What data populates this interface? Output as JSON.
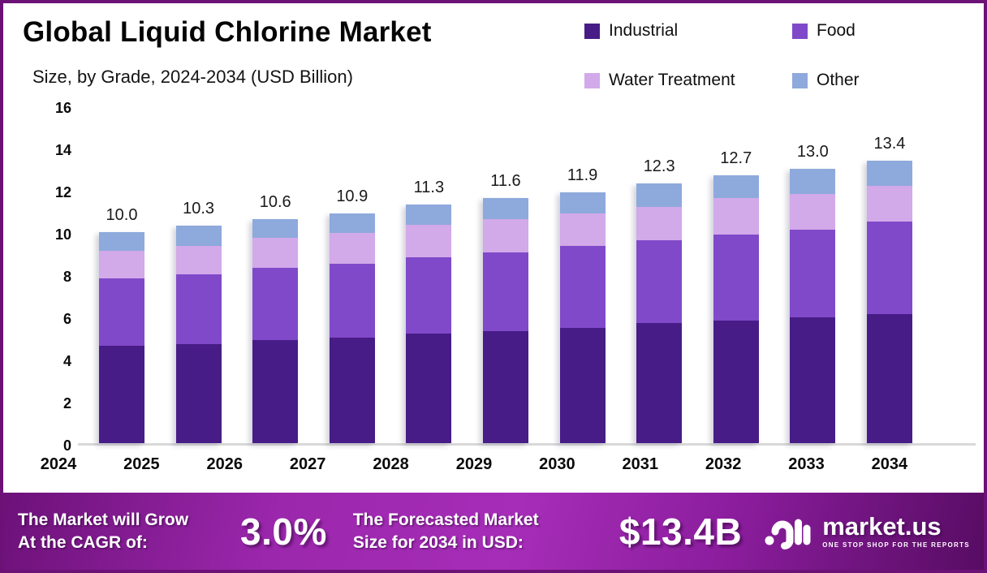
{
  "header": {
    "title": "Global Liquid Chlorine Market",
    "subtitle": "Size, by Grade, 2024-2034 (USD Billion)"
  },
  "chart_data": {
    "type": "bar",
    "stacked": true,
    "title": "Global Liquid Chlorine Market Size, by Grade, 2024-2034 (USD Billion)",
    "categories": [
      "2024",
      "2025",
      "2026",
      "2027",
      "2028",
      "2029",
      "2030",
      "2031",
      "2032",
      "2033",
      "2034"
    ],
    "series": [
      {
        "name": "Industrial",
        "color": "#471C87",
        "values": [
          4.6,
          4.7,
          4.9,
          5.0,
          5.2,
          5.3,
          5.45,
          5.7,
          5.8,
          5.95,
          6.1
        ]
      },
      {
        "name": "Food",
        "color": "#8049C9",
        "values": [
          3.2,
          3.3,
          3.4,
          3.5,
          3.6,
          3.75,
          3.9,
          3.9,
          4.1,
          4.15,
          4.4
        ]
      },
      {
        "name": "Water Treatment",
        "color": "#D2A9E9",
        "values": [
          1.3,
          1.35,
          1.45,
          1.45,
          1.55,
          1.55,
          1.55,
          1.6,
          1.7,
          1.7,
          1.7
        ]
      },
      {
        "name": "Other",
        "color": "#8EA9DC",
        "values": [
          0.9,
          0.95,
          0.85,
          0.95,
          0.95,
          1.0,
          1.0,
          1.1,
          1.1,
          1.2,
          1.2
        ]
      }
    ],
    "totals": [
      10.0,
      10.3,
      10.6,
      10.9,
      11.3,
      11.6,
      11.9,
      12.3,
      12.7,
      13.0,
      13.4
    ],
    "total_labels": [
      "10.0",
      "10.3",
      "10.6",
      "10.9",
      "11.3",
      "11.6",
      "11.9",
      "12.3",
      "12.7",
      "13.0",
      "13.4"
    ],
    "ylim": [
      0,
      16
    ],
    "yticks": [
      0,
      2,
      4,
      6,
      8,
      10,
      12,
      14,
      16
    ],
    "grid": false,
    "legend_position": "top-right",
    "axis_line_color": "#D9D9D9"
  },
  "banner": {
    "cagr_label_line1": "The Market will Grow",
    "cagr_label_line2": "At the CAGR of:",
    "cagr_value": "3.0%",
    "forecast_label_line1": "The Forecasted Market",
    "forecast_label_line2": "Size for 2034 in USD:",
    "forecast_value": "$13.4B",
    "logo_text": "market.us",
    "logo_tagline": "ONE STOP SHOP FOR THE REPORTS"
  }
}
